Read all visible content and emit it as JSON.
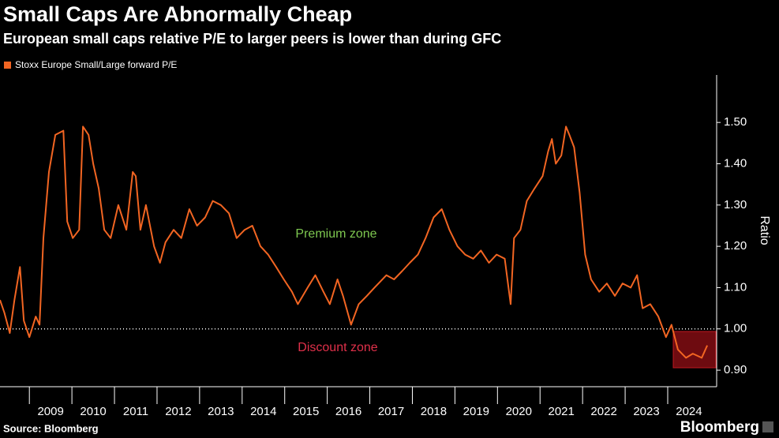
{
  "chart_data": {
    "type": "line",
    "title": "Small Caps Are Abnormally Cheap",
    "subtitle": "European small caps relative P/E to larger peers is lower than during GFC",
    "y_label": "Ratio",
    "source": "Source: Bloomberg",
    "brand": "Bloomberg",
    "annotations": [
      "Premium zone",
      "Discount zone"
    ],
    "reference_line": 1.0,
    "xlim": [
      2008.31,
      2025.15
    ],
    "xticks": [
      2009,
      2010,
      2011,
      2012,
      2013,
      2014,
      2015,
      2016,
      2017,
      2018,
      2019,
      2020,
      2021,
      2022,
      2023,
      2024
    ],
    "ylim": [
      0.86,
      1.615
    ],
    "yticks": [
      {
        "value": 0.9,
        "label": "0.90"
      },
      {
        "value": 1.0,
        "label": "1.00"
      },
      {
        "value": 1.1,
        "label": "1.10"
      },
      {
        "value": 1.2,
        "label": "1.20"
      },
      {
        "value": 1.3,
        "label": "1.30"
      },
      {
        "value": 1.4,
        "label": "1.40"
      },
      {
        "value": 1.5,
        "label": "1.50"
      }
    ],
    "x": [
      2008.31,
      2008.41,
      2008.54,
      2008.65,
      2008.78,
      2008.87,
      2009.0,
      2009.15,
      2009.24,
      2009.33,
      2009.46,
      2009.61,
      2009.8,
      2009.89,
      2010.02,
      2010.17,
      2010.26,
      2010.39,
      2010.5,
      2010.63,
      2010.76,
      2010.91,
      2011.09,
      2011.28,
      2011.43,
      2011.5,
      2011.61,
      2011.74,
      2011.93,
      2012.07,
      2012.2,
      2012.39,
      2012.57,
      2012.76,
      2012.94,
      2013.13,
      2013.31,
      2013.5,
      2013.69,
      2013.87,
      2014.06,
      2014.24,
      2014.43,
      2014.61,
      2014.8,
      2014.98,
      2015.17,
      2015.31,
      2015.54,
      2015.72,
      2015.91,
      2016.06,
      2016.24,
      2016.37,
      2016.56,
      2016.74,
      2016.93,
      2017.11,
      2017.39,
      2017.57,
      2017.76,
      2017.94,
      2018.13,
      2018.31,
      2018.5,
      2018.69,
      2018.87,
      2019.06,
      2019.24,
      2019.43,
      2019.61,
      2019.8,
      2019.98,
      2020.17,
      2020.31,
      2020.39,
      2020.54,
      2020.69,
      2020.87,
      2021.06,
      2021.19,
      2021.28,
      2021.37,
      2021.5,
      2021.61,
      2021.69,
      2021.8,
      2021.93,
      2022.06,
      2022.2,
      2022.39,
      2022.57,
      2022.76,
      2022.94,
      2023.13,
      2023.28,
      2023.41,
      2023.59,
      2023.78,
      2023.96,
      2024.09,
      2024.24,
      2024.43,
      2024.59,
      2024.8,
      2024.93
    ],
    "series": [
      {
        "name": "Stoxx Europe Small/Large forward P/E",
        "color": "#f26522",
        "values": [
          1.07,
          1.04,
          0.99,
          1.07,
          1.15,
          1.02,
          0.98,
          1.03,
          1.01,
          1.22,
          1.38,
          1.47,
          1.48,
          1.26,
          1.22,
          1.24,
          1.49,
          1.47,
          1.4,
          1.34,
          1.24,
          1.22,
          1.3,
          1.24,
          1.38,
          1.37,
          1.24,
          1.3,
          1.2,
          1.16,
          1.21,
          1.24,
          1.22,
          1.29,
          1.25,
          1.27,
          1.31,
          1.3,
          1.28,
          1.22,
          1.24,
          1.25,
          1.2,
          1.18,
          1.15,
          1.12,
          1.09,
          1.06,
          1.1,
          1.13,
          1.09,
          1.06,
          1.12,
          1.08,
          1.01,
          1.06,
          1.08,
          1.1,
          1.13,
          1.12,
          1.14,
          1.16,
          1.18,
          1.22,
          1.27,
          1.29,
          1.24,
          1.2,
          1.18,
          1.17,
          1.19,
          1.16,
          1.18,
          1.17,
          1.06,
          1.22,
          1.24,
          1.31,
          1.34,
          1.37,
          1.43,
          1.46,
          1.4,
          1.42,
          1.49,
          1.47,
          1.44,
          1.33,
          1.18,
          1.12,
          1.09,
          1.11,
          1.08,
          1.11,
          1.1,
          1.13,
          1.05,
          1.06,
          1.03,
          0.98,
          1.01,
          0.95,
          0.93,
          0.94,
          0.93,
          0.96
        ]
      }
    ]
  }
}
